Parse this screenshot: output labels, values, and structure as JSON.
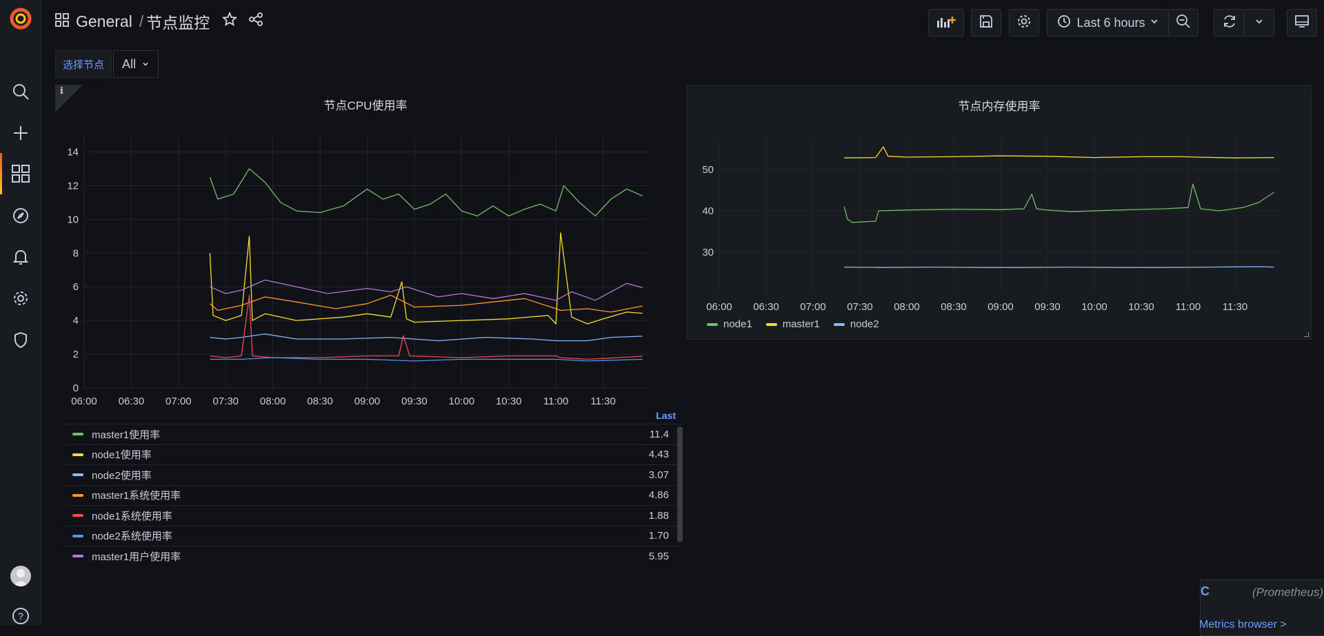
{
  "header": {
    "folder": "General",
    "separator": "/",
    "dashboard_title": "节点监控"
  },
  "toolbar": {
    "time_range": "Last 6 hours"
  },
  "variables": {
    "label": "选择节点",
    "value": "All"
  },
  "icons": {
    "logo": "grafana-logo",
    "search": "search-icon",
    "create": "plus-icon",
    "dashboards": "dashboards-icon",
    "explore": "compass-icon",
    "alerting": "bell-icon",
    "configuration": "gear-icon",
    "admin": "shield-icon",
    "help": "help-icon"
  },
  "colors": {
    "green": "#73bf69",
    "yellow": "#fade2a",
    "blue": "#8ab8ff",
    "orange": "#ff9830",
    "red": "#f2495c",
    "darkblue": "#5794f2",
    "purple": "#b877d9",
    "accent": "#6e9fff"
  },
  "cpu_panel": {
    "title": "节点CPU使用率",
    "info_icon": "i",
    "legend_header": "Last",
    "legend": [
      {
        "name": "master1使用率",
        "last": "11.4",
        "color": "#73bf69"
      },
      {
        "name": "node1使用率",
        "last": "4.43",
        "color": "#fade2a"
      },
      {
        "name": "node2使用率",
        "last": "3.07",
        "color": "#8ab8ff"
      },
      {
        "name": "master1系统使用率",
        "last": "4.86",
        "color": "#ff9830"
      },
      {
        "name": "node1系统使用率",
        "last": "1.88",
        "color": "#f2495c"
      },
      {
        "name": "node2系统使用率",
        "last": "1.70",
        "color": "#5794f2"
      },
      {
        "name": "master1用户使用率",
        "last": "5.95",
        "color": "#b877d9"
      }
    ]
  },
  "mem_panel": {
    "title": "节点内存使用率",
    "legend": [
      {
        "name": "node1",
        "color": "#73bf69"
      },
      {
        "name": "master1",
        "color": "#fade2a"
      },
      {
        "name": "node2",
        "color": "#8ab8ff"
      }
    ]
  },
  "chart_data": [
    {
      "type": "line",
      "title": "节点CPU使用率",
      "x_ticks": [
        "06:00",
        "06:30",
        "07:00",
        "07:30",
        "08:00",
        "08:30",
        "09:00",
        "09:30",
        "10:00",
        "10:30",
        "11:00",
        "11:30"
      ],
      "y_ticks": [
        0,
        2,
        4,
        6,
        8,
        10,
        12,
        14
      ],
      "ylim": [
        0,
        15
      ],
      "x_range": [
        "06:00",
        "12:00"
      ],
      "grid": true,
      "legend_position": "bottom",
      "series": [
        {
          "name": "master1使用率",
          "color": "#73bf69",
          "x": [
            "07:20",
            "07:25",
            "07:35",
            "07:45",
            "07:55",
            "08:05",
            "08:15",
            "08:30",
            "08:45",
            "09:00",
            "09:10",
            "09:20",
            "09:30",
            "09:40",
            "09:50",
            "10:00",
            "10:10",
            "10:20",
            "10:30",
            "10:40",
            "10:50",
            "11:00",
            "11:05",
            "11:15",
            "11:25",
            "11:35",
            "11:45",
            "11:55"
          ],
          "y": [
            12.5,
            11.2,
            11.5,
            13.0,
            12.2,
            11.0,
            10.5,
            10.4,
            10.8,
            11.8,
            11.2,
            11.5,
            10.6,
            10.9,
            11.5,
            10.5,
            10.2,
            10.8,
            10.2,
            10.6,
            10.9,
            10.5,
            12.0,
            11.0,
            10.2,
            11.2,
            11.8,
            11.4
          ]
        },
        {
          "name": "node1使用率",
          "color": "#fade2a",
          "x": [
            "07:20",
            "07:22",
            "07:30",
            "07:40",
            "07:45",
            "07:47",
            "07:55",
            "08:15",
            "08:45",
            "09:00",
            "09:15",
            "09:22",
            "09:25",
            "09:30",
            "10:00",
            "10:30",
            "10:55",
            "11:00",
            "11:03",
            "11:10",
            "11:20",
            "11:30",
            "11:45",
            "11:55"
          ],
          "y": [
            8.0,
            4.3,
            4.0,
            4.3,
            9.0,
            4.0,
            4.4,
            4.0,
            4.2,
            4.4,
            4.2,
            6.3,
            4.1,
            3.9,
            4.0,
            4.1,
            4.3,
            3.8,
            9.2,
            4.2,
            3.8,
            4.1,
            4.5,
            4.43
          ]
        },
        {
          "name": "node2使用率",
          "color": "#8ab8ff",
          "x": [
            "07:20",
            "07:30",
            "07:40",
            "07:55",
            "08:15",
            "08:45",
            "09:15",
            "09:45",
            "10:15",
            "10:45",
            "11:00",
            "11:05",
            "11:20",
            "11:35",
            "11:55"
          ],
          "y": [
            3.0,
            2.9,
            3.0,
            3.2,
            2.9,
            2.9,
            3.0,
            2.8,
            3.0,
            2.9,
            2.8,
            2.8,
            2.8,
            3.0,
            3.07
          ]
        },
        {
          "name": "master1系统使用率",
          "color": "#ff9830",
          "x": [
            "07:20",
            "07:25",
            "07:40",
            "07:55",
            "08:15",
            "08:40",
            "09:00",
            "09:15",
            "09:30",
            "10:00",
            "10:20",
            "10:40",
            "11:00",
            "11:03",
            "11:20",
            "11:35",
            "11:55"
          ],
          "y": [
            5.0,
            4.6,
            4.9,
            5.4,
            5.1,
            4.7,
            5.0,
            5.5,
            4.8,
            4.9,
            5.1,
            5.3,
            4.7,
            4.6,
            4.7,
            4.5,
            4.86
          ]
        },
        {
          "name": "node1系统使用率",
          "color": "#f2495c",
          "x": [
            "07:20",
            "07:30",
            "07:40",
            "07:45",
            "07:47",
            "08:00",
            "08:30",
            "09:00",
            "09:20",
            "09:23",
            "09:27",
            "10:00",
            "10:30",
            "11:00",
            "11:03",
            "11:20",
            "11:55"
          ],
          "y": [
            1.9,
            1.8,
            1.9,
            5.5,
            1.9,
            1.8,
            1.8,
            1.9,
            1.9,
            3.1,
            1.9,
            1.8,
            1.9,
            1.9,
            1.8,
            1.7,
            1.88
          ]
        },
        {
          "name": "node2系统使用率",
          "color": "#5794f2",
          "x": [
            "07:20",
            "07:40",
            "08:00",
            "08:30",
            "09:00",
            "09:30",
            "10:00",
            "10:30",
            "11:00",
            "11:20",
            "11:55"
          ],
          "y": [
            1.7,
            1.7,
            1.8,
            1.7,
            1.7,
            1.6,
            1.7,
            1.7,
            1.7,
            1.6,
            1.7
          ]
        },
        {
          "name": "master1用户使用率",
          "color": "#b877d9",
          "x": [
            "07:20",
            "07:30",
            "07:40",
            "07:55",
            "08:15",
            "08:35",
            "09:00",
            "09:15",
            "09:25",
            "09:45",
            "10:00",
            "10:20",
            "10:40",
            "11:00",
            "11:10",
            "11:25",
            "11:45",
            "11:55"
          ],
          "y": [
            6.0,
            5.6,
            5.8,
            6.4,
            6.0,
            5.6,
            5.9,
            5.7,
            6.0,
            5.4,
            5.6,
            5.3,
            5.6,
            5.2,
            5.7,
            5.2,
            6.2,
            5.95
          ]
        }
      ]
    },
    {
      "type": "line",
      "title": "节点内存使用率",
      "x_ticks": [
        "06:00",
        "06:30",
        "07:00",
        "07:30",
        "08:00",
        "08:30",
        "09:00",
        "09:30",
        "10:00",
        "10:30",
        "11:00",
        "11:30"
      ],
      "y_ticks": [
        30,
        40,
        50
      ],
      "ylim": [
        20,
        58
      ],
      "x_range": [
        "06:00",
        "12:00"
      ],
      "grid": true,
      "legend_position": "bottom",
      "series": [
        {
          "name": "node1",
          "color": "#73bf69",
          "x": [
            "07:20",
            "07:22",
            "07:25",
            "07:40",
            "07:42",
            "08:00",
            "08:30",
            "09:00",
            "09:15",
            "09:20",
            "09:23",
            "09:30",
            "09:45",
            "10:15",
            "10:45",
            "11:00",
            "11:03",
            "11:08",
            "11:20",
            "11:35",
            "11:45",
            "11:55"
          ],
          "y": [
            41.0,
            38.0,
            37.2,
            37.5,
            40.0,
            40.2,
            40.4,
            40.3,
            40.5,
            44.0,
            40.5,
            40.2,
            39.8,
            40.2,
            40.5,
            40.8,
            46.5,
            40.5,
            40.0,
            40.8,
            42.0,
            44.5
          ]
        },
        {
          "name": "master1",
          "color": "#fade2a",
          "x": [
            "07:20",
            "07:40",
            "07:45",
            "07:48",
            "08:00",
            "08:30",
            "09:00",
            "09:30",
            "10:00",
            "10:30",
            "10:55",
            "11:05",
            "11:30",
            "11:55"
          ],
          "y": [
            52.8,
            52.9,
            55.5,
            53.2,
            53.0,
            53.1,
            53.3,
            53.2,
            52.9,
            53.1,
            53.1,
            53.0,
            52.8,
            52.9
          ]
        },
        {
          "name": "node2",
          "color": "#8ab8ff",
          "x": [
            "07:20",
            "07:45",
            "08:15",
            "08:45",
            "09:15",
            "09:45",
            "10:15",
            "10:45",
            "11:15",
            "11:45",
            "11:55"
          ],
          "y": [
            26.4,
            26.3,
            26.4,
            26.3,
            26.3,
            26.4,
            26.3,
            26.3,
            26.4,
            26.5,
            26.4
          ]
        }
      ]
    }
  ],
  "query_editor": {
    "ref": "C",
    "datasource_hint": "(Prometheus)",
    "metrics_browser": "Metrics browser >"
  }
}
